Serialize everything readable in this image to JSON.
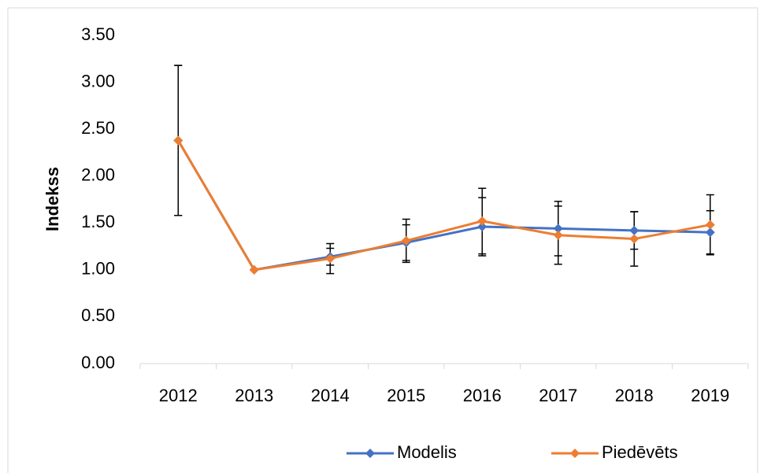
{
  "chart_data": {
    "type": "line",
    "y_label": "Indekss",
    "categories": [
      "2012",
      "2013",
      "2014",
      "2015",
      "2016",
      "2017",
      "2018",
      "2019"
    ],
    "series": [
      {
        "name": "Modelis",
        "color": "#4472c4",
        "values": [
          2.38,
          1.0,
          1.14,
          1.29,
          1.46,
          1.44,
          1.42,
          1.4
        ],
        "errors": [
          0.8,
          0,
          0.09,
          0.19,
          0.31,
          0.29,
          0.2,
          0.23
        ]
      },
      {
        "name": "Piedēvēts",
        "color": "#ed7d31",
        "values": [
          2.38,
          1.0,
          1.12,
          1.31,
          1.52,
          1.37,
          1.33,
          1.48
        ],
        "errors": [
          0.8,
          0,
          0.16,
          0.23,
          0.35,
          0.31,
          0.29,
          0.32
        ]
      }
    ],
    "ylim": [
      0,
      3.5
    ],
    "yticks": [
      {
        "value": 0,
        "label": "0.00"
      },
      {
        "value": 0.5,
        "label": "0.50"
      },
      {
        "value": 1,
        "label": "1.00"
      },
      {
        "value": 1.5,
        "label": "1.50"
      },
      {
        "value": 2,
        "label": "2.00"
      },
      {
        "value": 2.5,
        "label": "2.50"
      },
      {
        "value": 3,
        "label": "3.00"
      },
      {
        "value": 3.5,
        "label": "3.50"
      }
    ],
    "legend": "bottom"
  }
}
